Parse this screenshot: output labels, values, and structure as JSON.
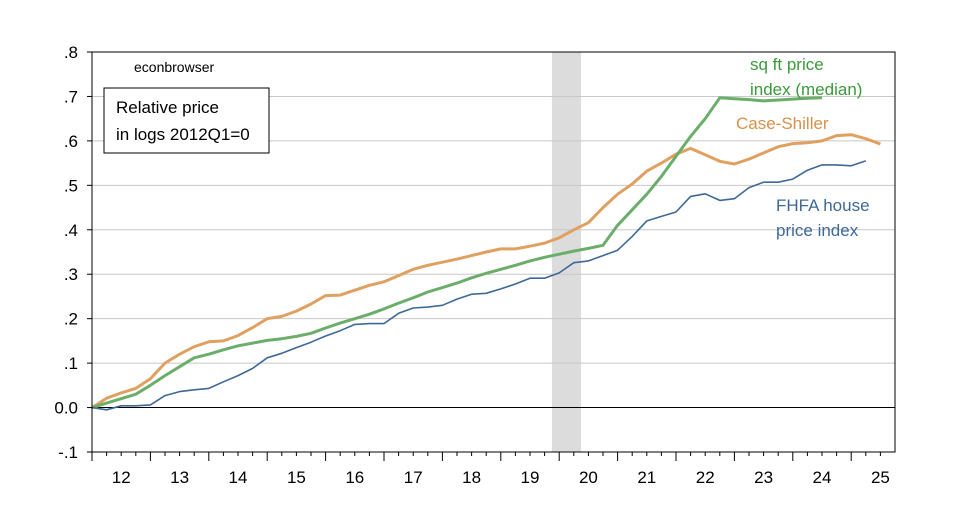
{
  "chart_data": {
    "type": "line",
    "source_note": "econbrowser",
    "box_label": [
      "Relative price",
      "in logs 2012Q1=0"
    ],
    "ylim": [
      -0.1,
      0.8
    ],
    "yticks": [
      {
        "v": 0.8,
        "label": ".8"
      },
      {
        "v": 0.7,
        "label": ".7"
      },
      {
        "v": 0.6,
        "label": ".6"
      },
      {
        "v": 0.5,
        "label": ".5"
      },
      {
        "v": 0.4,
        "label": ".4"
      },
      {
        "v": 0.3,
        "label": ".3"
      },
      {
        "v": 0.2,
        "label": ".2"
      },
      {
        "v": 0.1,
        "label": ".1"
      },
      {
        "v": 0.0,
        "label": "0.0"
      },
      {
        "v": -0.1,
        "label": "-.1"
      }
    ],
    "xlim": [
      2012.0,
      2025.75
    ],
    "xticks": [
      "12",
      "13",
      "14",
      "15",
      "16",
      "17",
      "18",
      "19",
      "20",
      "21",
      "22",
      "23",
      "24",
      "25"
    ],
    "recession": [
      2019.875,
      2020.375
    ],
    "grid": true,
    "series": [
      {
        "name": "Case-Shiller",
        "label_lines": [
          "Case-Shiller"
        ],
        "color": "#E0A060",
        "x": [
          2012.0,
          2012.25,
          2012.5,
          2012.75,
          2013.0,
          2013.25,
          2013.5,
          2013.75,
          2014.0,
          2014.25,
          2014.5,
          2014.75,
          2015.0,
          2015.25,
          2015.5,
          2015.75,
          2016.0,
          2016.25,
          2016.5,
          2016.75,
          2017.0,
          2017.25,
          2017.5,
          2017.75,
          2018.0,
          2018.25,
          2018.5,
          2018.75,
          2019.0,
          2019.25,
          2019.5,
          2019.75,
          2020.0,
          2020.25,
          2020.5,
          2020.75,
          2021.0,
          2021.25,
          2021.5,
          2021.75,
          2022.0,
          2022.25,
          2022.5,
          2022.75,
          2023.0,
          2023.25,
          2023.5,
          2023.75,
          2024.0,
          2024.25,
          2024.5,
          2024.75,
          2025.0,
          2025.25,
          2025.5
        ],
        "y": [
          0.0,
          0.021,
          0.033,
          0.043,
          0.065,
          0.1,
          0.12,
          0.137,
          0.148,
          0.15,
          0.162,
          0.18,
          0.2,
          0.205,
          0.217,
          0.233,
          0.252,
          0.253,
          0.264,
          0.275,
          0.283,
          0.297,
          0.311,
          0.32,
          0.327,
          0.334,
          0.342,
          0.35,
          0.357,
          0.357,
          0.363,
          0.37,
          0.382,
          0.4,
          0.416,
          0.45,
          0.48,
          0.503,
          0.532,
          0.55,
          0.57,
          0.583,
          0.569,
          0.554,
          0.548,
          0.559,
          0.573,
          0.587,
          0.594,
          0.596,
          0.6,
          0.612,
          0.614,
          0.605,
          0.593
        ]
      },
      {
        "name": "sq ft price index (median)",
        "label_lines": [
          "sq ft price",
          "index (median)"
        ],
        "color": "#6AAE6A",
        "x": [
          2012.0,
          2012.25,
          2012.5,
          2012.75,
          2013.0,
          2013.25,
          2013.5,
          2013.75,
          2014.0,
          2014.25,
          2014.5,
          2014.75,
          2015.0,
          2015.25,
          2015.5,
          2015.75,
          2016.0,
          2016.25,
          2016.5,
          2016.75,
          2017.0,
          2017.25,
          2017.5,
          2017.75,
          2018.0,
          2018.25,
          2018.5,
          2018.75,
          2019.0,
          2019.25,
          2019.5,
          2019.75,
          2020.0,
          2020.25,
          2020.5,
          2020.75,
          2021.0,
          2021.25,
          2021.5,
          2021.75,
          2022.0,
          2022.25,
          2022.5,
          2022.75,
          2023.0,
          2023.25,
          2023.5,
          2023.75,
          2024.0,
          2024.25,
          2024.5
        ],
        "y": [
          0.0,
          0.01,
          0.02,
          0.03,
          0.05,
          0.072,
          0.092,
          0.112,
          0.12,
          0.13,
          0.139,
          0.145,
          0.151,
          0.155,
          0.16,
          0.167,
          0.179,
          0.19,
          0.2,
          0.21,
          0.222,
          0.235,
          0.247,
          0.26,
          0.27,
          0.28,
          0.292,
          0.302,
          0.311,
          0.32,
          0.33,
          0.338,
          0.345,
          0.352,
          0.358,
          0.365,
          0.41,
          0.445,
          0.48,
          0.52,
          0.565,
          0.61,
          0.65,
          0.697,
          0.695,
          0.693,
          0.69,
          0.692,
          0.694,
          0.696,
          0.697
        ]
      },
      {
        "name": "FHFA house price index",
        "label_lines": [
          "FHFA house",
          "price index"
        ],
        "color": "#3F6898",
        "x": [
          2012.0,
          2012.25,
          2012.5,
          2012.75,
          2013.0,
          2013.25,
          2013.5,
          2013.75,
          2014.0,
          2014.25,
          2014.5,
          2014.75,
          2015.0,
          2015.25,
          2015.5,
          2015.75,
          2016.0,
          2016.25,
          2016.5,
          2016.75,
          2017.0,
          2017.25,
          2017.5,
          2017.75,
          2018.0,
          2018.25,
          2018.5,
          2018.75,
          2019.0,
          2019.25,
          2019.5,
          2019.75,
          2020.0,
          2020.25,
          2020.5,
          2020.75,
          2021.0,
          2021.25,
          2021.5,
          2021.75,
          2022.0,
          2022.25,
          2022.5,
          2022.75,
          2023.0,
          2023.25,
          2023.5,
          2023.75,
          2024.0,
          2024.25,
          2024.5,
          2024.75,
          2025.0,
          2025.25
        ],
        "y": [
          0.0,
          -0.005,
          0.004,
          0.004,
          0.006,
          0.027,
          0.036,
          0.04,
          0.043,
          0.058,
          0.072,
          0.088,
          0.112,
          0.122,
          0.135,
          0.147,
          0.161,
          0.173,
          0.187,
          0.189,
          0.189,
          0.212,
          0.224,
          0.226,
          0.23,
          0.244,
          0.255,
          0.257,
          0.267,
          0.278,
          0.291,
          0.291,
          0.303,
          0.326,
          0.33,
          0.342,
          0.354,
          0.385,
          0.42,
          0.43,
          0.44,
          0.475,
          0.481,
          0.466,
          0.47,
          0.495,
          0.507,
          0.507,
          0.514,
          0.534,
          0.546,
          0.546,
          0.544,
          0.555
        ]
      }
    ]
  }
}
